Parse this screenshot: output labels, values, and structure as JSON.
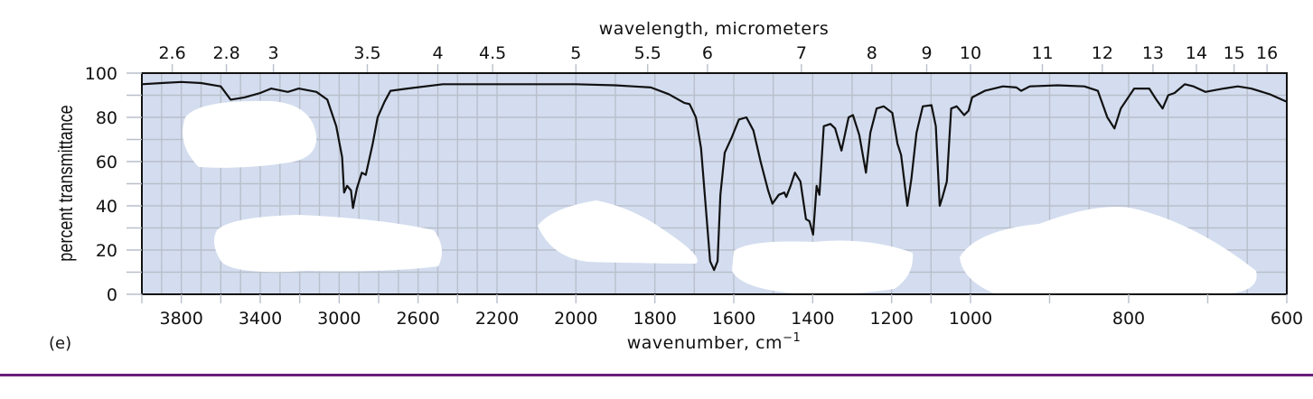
{
  "chart_data": {
    "type": "line",
    "title": "",
    "panel_label": "(e)",
    "xlabel": "wavenumber, cm⁻¹",
    "xlabel_text": "wavenumber, cm",
    "xlabel_sup": "−1",
    "x2label": "wavelength, micrometers",
    "ylabel": "percent transmittance",
    "xlim": [
      4000,
      600
    ],
    "ylim": [
      0,
      100
    ],
    "grid": true,
    "x_scale_note": "piecewise linear: 4000-2200, 2200-1000, 1000-600 (each segment doubles scale)",
    "x_ticks": [
      3800,
      3400,
      3000,
      2600,
      2200,
      2000,
      1800,
      1600,
      1400,
      1200,
      1000,
      800,
      600
    ],
    "x_tick_labels": [
      "3800",
      "3400",
      "3000",
      "2600",
      "2200",
      "2000",
      "1800",
      "1600",
      "1400",
      "1200",
      "1000",
      "800",
      "600"
    ],
    "y_ticks": [
      0,
      20,
      40,
      60,
      80,
      100
    ],
    "y_tick_labels": [
      "0",
      "20",
      "40",
      "60",
      "80",
      "100"
    ],
    "top_ticks_um": [
      2.6,
      2.8,
      3,
      3.5,
      4,
      4.5,
      5,
      5.5,
      6,
      7,
      8,
      9,
      10,
      11,
      12,
      13,
      14,
      15,
      16
    ],
    "top_tick_labels": [
      "2.6",
      "2.8",
      "3",
      "3.5",
      "4",
      "4.5",
      "5",
      "5.5",
      "6",
      "7",
      "8",
      "9",
      "10",
      "11",
      "12",
      "13",
      "14",
      "15",
      "16"
    ],
    "series": [
      {
        "name": "IR spectrum",
        "color": "#111111",
        "x": [
          4000,
          3900,
          3800,
          3700,
          3600,
          3550,
          3480,
          3400,
          3345,
          3260,
          3205,
          3115,
          3060,
          3015,
          2985,
          2975,
          2960,
          2940,
          2930,
          2910,
          2885,
          2865,
          2830,
          2805,
          2770,
          2740,
          2655,
          2475,
          2300,
          2100,
          2000,
          1900,
          1855,
          1810,
          1765,
          1725,
          1712,
          1696,
          1683,
          1669,
          1660,
          1650,
          1641,
          1634,
          1623,
          1605,
          1587,
          1568,
          1550,
          1532,
          1513,
          1502,
          1486,
          1472,
          1467,
          1456,
          1445,
          1431,
          1417,
          1408,
          1399,
          1390,
          1383,
          1372,
          1355,
          1343,
          1327,
          1309,
          1298,
          1282,
          1265,
          1254,
          1238,
          1220,
          1198,
          1185,
          1176,
          1160,
          1150,
          1137,
          1121,
          1099,
          1088,
          1078,
          1071,
          1060,
          1049,
          1035,
          1016,
          1005,
          998,
          982,
          959,
          942,
          936,
          925,
          890,
          856,
          839,
          827,
          818,
          810,
          793,
          774,
          765,
          757,
          750,
          742,
          729,
          718,
          703,
          680,
          662,
          645,
          622,
          600
        ],
        "y": [
          95,
          95.5,
          96,
          95.5,
          94,
          88,
          89,
          91,
          93,
          91.5,
          93,
          91.5,
          88,
          76,
          62,
          46,
          49,
          47,
          39,
          48,
          55,
          54,
          68,
          80,
          87,
          92,
          93,
          95,
          95,
          95,
          95,
          94.5,
          94,
          93.5,
          90.5,
          86.5,
          86,
          80,
          66,
          35,
          15,
          11,
          15,
          45,
          64,
          71,
          79,
          80,
          74,
          60,
          47,
          41,
          45,
          46,
          44,
          49,
          55,
          51,
          34,
          33,
          27,
          49,
          45,
          76,
          77,
          75,
          65,
          80,
          81,
          72,
          55,
          73,
          84,
          85,
          82,
          68,
          63,
          40,
          52,
          73,
          85,
          85.5,
          76,
          40,
          44,
          51,
          84,
          85,
          81,
          83,
          89,
          92,
          94,
          93.5,
          92,
          94,
          94.5,
          94,
          92,
          80,
          75,
          84,
          93,
          93,
          88,
          84,
          90,
          91,
          95,
          94,
          91.5,
          93,
          94,
          93,
          90.5,
          87
        ]
      }
    ]
  },
  "colors": {
    "plot_background": "#d3ddef",
    "grid": "#b9bfcb",
    "line": "#111111",
    "divider": "#6a1f7a",
    "redaction": "#ffffff"
  }
}
